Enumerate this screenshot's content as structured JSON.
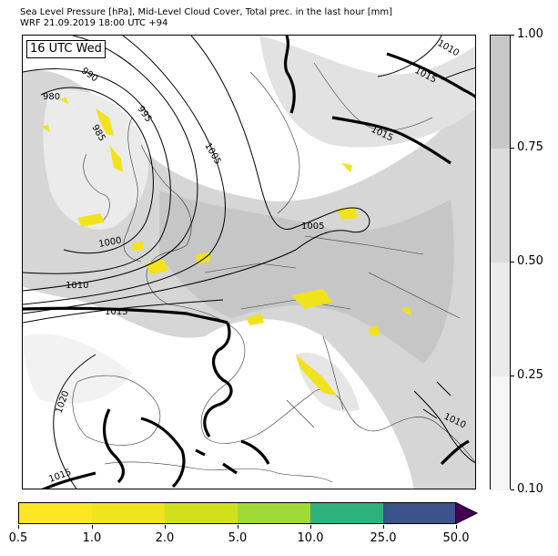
{
  "title_line1": "Sea Level Pressure [hPa], Mid-Level Cloud Cover, Total prec. in the last hour [mm]",
  "title_line2": "WRF 21.09.2019 18:00 UTC +94",
  "time_label": "16 UTC Wed",
  "isobar_labels": [
    "980",
    "985",
    "990",
    "995",
    "1000",
    "1005",
    "1005",
    "1010",
    "1010",
    "1010",
    "1015",
    "1015",
    "1015",
    "1015",
    "1020"
  ],
  "cloud_colorbar": {
    "ticks": [
      "1.00",
      "0.75",
      "0.50",
      "0.25",
      "0.10"
    ],
    "colors": [
      "#c8c8c8",
      "#dcdcdc",
      "#ebebeb",
      "#f6f6f6"
    ]
  },
  "precip_colorbar": {
    "ticks": [
      "0.5",
      "1.0",
      "2.0",
      "5.0",
      "10.0",
      "25.0",
      "50.0"
    ],
    "colors": [
      "#fde725",
      "#efe51c",
      "#d0e11c",
      "#a0da39",
      "#2db27d",
      "#3b528b",
      "#440154"
    ]
  }
}
